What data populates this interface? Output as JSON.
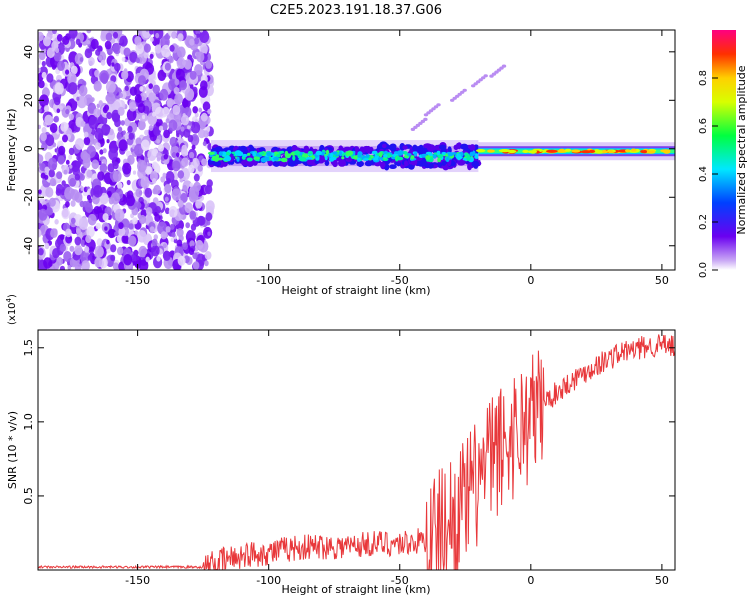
{
  "title": "C2E5.2023.191.18.37.G06",
  "chart_data": [
    {
      "type": "heatmap",
      "xlabel": "Height of straight line (km)",
      "ylabel": "Frequency (Hz)",
      "xlim": [
        -188,
        55
      ],
      "ylim": [
        -50,
        49
      ],
      "xticks": [
        -150,
        -100,
        -50,
        0,
        50
      ],
      "yticks": [
        -40,
        -20,
        0,
        20,
        40
      ],
      "regions": [
        {
          "name": "noise",
          "x": [
            -188,
            -122
          ],
          "freq_spread": [
            -50,
            49
          ]
        },
        {
          "name": "signal-noisy",
          "x": [
            -122,
            -20
          ],
          "center_freq": -3,
          "width_hz": 8
        },
        {
          "name": "signal-clean",
          "x": [
            -20,
            55
          ],
          "center_freq": -1,
          "width_hz": 3
        }
      ],
      "colorbar": {
        "label": "Normalized spectral amplitude",
        "range": [
          0.0,
          1.0
        ],
        "ticks": [
          "0.0",
          "0.2",
          "0.4",
          "0.6",
          "0.8"
        ]
      }
    },
    {
      "type": "line",
      "xlabel": "Height of straight line (km)",
      "ylabel": "SNR (10 * v/v)",
      "yscale_label": "(x10",
      "yscale_exp": "4",
      "yscale_close": ")",
      "xlim": [
        -188,
        55
      ],
      "ylim": [
        0,
        1.62
      ],
      "xticks": [
        -150,
        -100,
        -50,
        0,
        50
      ],
      "yticks": [
        "0.5",
        "1.0",
        "1.5"
      ],
      "ytick_values": [
        0.5,
        1.0,
        1.5
      ],
      "series": [
        {
          "color": "#e8383b",
          "x": [
            -188,
            -150,
            -125,
            -118,
            -110,
            -100,
            -90,
            -80,
            -70,
            -60,
            -50,
            -40,
            -35,
            -30,
            -25,
            -20,
            -15,
            -10,
            -5,
            0,
            5,
            10,
            15,
            20,
            25,
            30,
            35,
            40,
            45,
            50,
            55
          ],
          "y": [
            0.02,
            0.02,
            0.02,
            0.06,
            0.1,
            0.12,
            0.15,
            0.16,
            0.16,
            0.18,
            0.18,
            0.2,
            0.25,
            0.35,
            0.45,
            0.6,
            0.75,
            0.85,
            0.95,
            1.03,
            1.13,
            1.2,
            1.27,
            1.33,
            1.38,
            1.43,
            1.47,
            1.49,
            1.51,
            1.52,
            1.5
          ]
        }
      ]
    }
  ]
}
